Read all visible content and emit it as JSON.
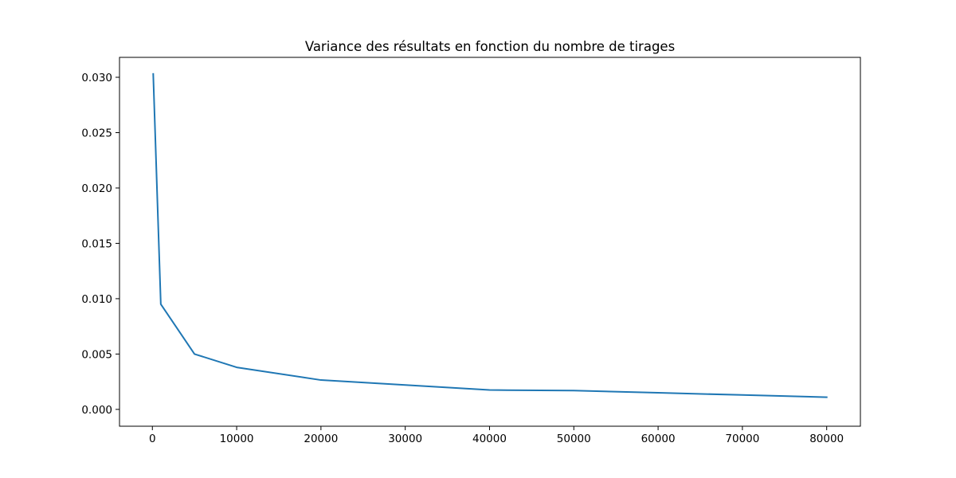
{
  "chart_data": {
    "type": "line",
    "title": "Variance des résultats en fonction du nombre de tirages",
    "xlabel": "",
    "ylabel": "",
    "x": [
      100,
      1000,
      5000,
      10000,
      20000,
      30000,
      40000,
      50000,
      60000,
      70000,
      80000
    ],
    "series": [
      {
        "values": [
          0.0303,
          0.0095,
          0.005,
          0.0038,
          0.00265,
          0.0022,
          0.00175,
          0.0017,
          0.0015,
          0.0013,
          0.0011
        ]
      }
    ],
    "xlim": [
      -3900,
      84000
    ],
    "ylim": [
      -0.00152,
      0.0318
    ],
    "xticks": [
      0,
      10000,
      20000,
      30000,
      40000,
      50000,
      60000,
      70000,
      80000
    ],
    "xtick_labels": [
      "0",
      "10000",
      "20000",
      "30000",
      "40000",
      "50000",
      "60000",
      "70000",
      "80000"
    ],
    "yticks": [
      0.0,
      0.005,
      0.01,
      0.015,
      0.02,
      0.025,
      0.03
    ],
    "ytick_labels": [
      "0.000",
      "0.005",
      "0.010",
      "0.015",
      "0.020",
      "0.025",
      "0.030"
    ],
    "grid": false,
    "legend": "none",
    "line_color": "#1f77b4"
  }
}
